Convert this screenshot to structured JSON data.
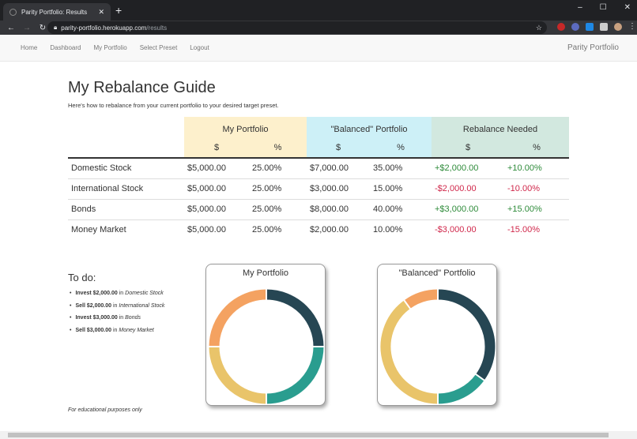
{
  "browser": {
    "tab_title": "Parity Portfolio: Results",
    "url_host": "parity-portfolio.herokuapp.com",
    "url_path": "/results"
  },
  "nav": {
    "items": [
      "Home",
      "Dashboard",
      "My Portfolio",
      "Select Preset",
      "Logout"
    ],
    "brand": "Parity Portfolio"
  },
  "page": {
    "title": "My Rebalance Guide",
    "subtitle": "Here's how to rebalance from your current portfolio to your desired target preset."
  },
  "table": {
    "groups": [
      "My Portfolio",
      "\"Balanced\" Portfolio",
      "Rebalance Needed"
    ],
    "subheaders": [
      "$",
      "%",
      "$",
      "%",
      "$",
      "%"
    ],
    "rows": [
      {
        "name": "Domestic Stock",
        "cells": [
          "$5,000.00",
          "25.00%",
          "$7,000.00",
          "35.00%",
          "+$2,000.00",
          "+10.00%"
        ]
      },
      {
        "name": "International Stock",
        "cells": [
          "$5,000.00",
          "25.00%",
          "$3,000.00",
          "15.00%",
          "-$2,000.00",
          "-10.00%"
        ]
      },
      {
        "name": "Bonds",
        "cells": [
          "$5,000.00",
          "25.00%",
          "$8,000.00",
          "40.00%",
          "+$3,000.00",
          "+15.00%"
        ]
      },
      {
        "name": "Money Market",
        "cells": [
          "$5,000.00",
          "25.00%",
          "$2,000.00",
          "10.00%",
          "-$3,000.00",
          "-15.00%"
        ]
      }
    ]
  },
  "todo": {
    "title": "To do:",
    "items": [
      {
        "action": "Invest $2,000.00",
        "in": "in",
        "asset": "Domestic Stock"
      },
      {
        "action": "Sell $2,000.00",
        "in": "in",
        "asset": "International Stock"
      },
      {
        "action": "Invest $3,000.00",
        "in": "in",
        "asset": "Bonds"
      },
      {
        "action": "Sell $3,000.00",
        "in": "in",
        "asset": "Money Market"
      }
    ]
  },
  "footer": "For educational purposes only",
  "colors": [
    "#264653",
    "#2a9d8f",
    "#e9c46a",
    "#f4a261"
  ],
  "charts": [
    {
      "title": "My Portfolio",
      "values": [
        25,
        25,
        25,
        25
      ]
    },
    {
      "title": "\"Balanced\" Portfolio",
      "values": [
        35,
        15,
        40,
        10
      ]
    }
  ]
}
